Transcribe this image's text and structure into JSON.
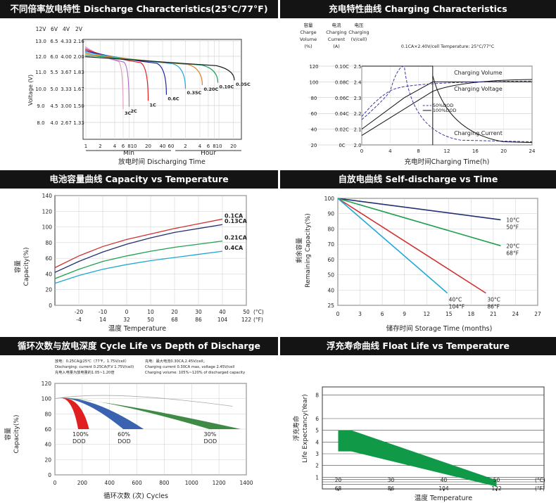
{
  "chart_data": [
    {
      "id": "discharge",
      "type": "line",
      "title": "不同倍率放电特性 Discharge Characteristics(25°C/77°F)",
      "voltage_headers": [
        "12V",
        "6V",
        "4V",
        "2V"
      ],
      "voltage_rows": [
        [
          "13.0",
          "6.5",
          "4.33",
          "2.16"
        ],
        [
          "12.0",
          "6.0",
          "4.00",
          "2.00"
        ],
        [
          "11.0",
          "5.5",
          "3.67",
          "1.83"
        ],
        [
          "10.0",
          "5.0",
          "3.33",
          "1.67"
        ],
        [
          "9.0",
          "4.5",
          "3.00",
          "1.50"
        ],
        [
          "8.0",
          "4.0",
          "2.67",
          "1.33"
        ]
      ],
      "ylabel": "Voltage (V)",
      "x_ticks_min": [
        "1",
        "2",
        "4",
        "6",
        "8",
        "10",
        "20",
        "40",
        "60"
      ],
      "x_ticks_hour": [
        "2",
        "4",
        "6",
        "8",
        "10",
        "20"
      ],
      "x_group_min": "Min",
      "x_group_hour": "Hour",
      "xlabel": "放电时间 Discharging Time",
      "ylim": [
        1.33,
        2.16
      ],
      "series": [
        {
          "name": "3C",
          "color": "#e0a0c0",
          "end_min": 6,
          "end_v": 1.58
        },
        {
          "name": "2C",
          "color": "#b070c8",
          "end_min": 8,
          "end_v": 1.6
        },
        {
          "name": "1C",
          "color": "#e02020",
          "end_min": 20,
          "end_v": 1.65
        },
        {
          "name": "0.6C",
          "color": "#2020a0",
          "end_min": 48,
          "end_v": 1.7
        },
        {
          "name": "0.35C",
          "color": "#20a8d8",
          "end_min": 120,
          "end_v": 1.75
        },
        {
          "name": "0.20C",
          "color": "#e08020",
          "end_min": 270,
          "end_v": 1.78
        },
        {
          "name": "0.10C",
          "color": "#20a060",
          "end_min": 570,
          "end_v": 1.8
        },
        {
          "name": "0.05C",
          "color": "#202020",
          "end_min": 1260,
          "end_v": 1.82
        }
      ]
    },
    {
      "id": "charging",
      "type": "line",
      "title": "充电特性曲线 Charging Characteristics",
      "col_headers": [
        [
          "容量",
          "Charge",
          "Volume",
          "(%)"
        ],
        [
          "电流",
          "Charging",
          "Current",
          "(A)"
        ],
        [
          "电压",
          "Charging",
          "(V/cell)"
        ]
      ],
      "note": "0.1CA×2.40V/cell  Temperature: 25°C/77°C",
      "rows": [
        [
          "120",
          "0.10C",
          "2.5"
        ],
        [
          "100",
          "0.08C",
          "2.4"
        ],
        [
          "80",
          "0.06C",
          "2.3"
        ],
        [
          "60",
          "0.04C",
          "2.2"
        ],
        [
          "40",
          "0.02C",
          "2.1"
        ],
        [
          "20",
          "0C",
          "2.0"
        ]
      ],
      "x_ticks": [
        "0",
        "4",
        "8",
        "12",
        "16",
        "20",
        "24"
      ],
      "xlim": [
        0,
        24
      ],
      "xlabel": "充电时间Charging Time(h)",
      "legend": [
        "50%DOD",
        "100%DOD"
      ],
      "labels": [
        "Charging Volume",
        "Charging Voltage",
        "Charging Current"
      ]
    },
    {
      "id": "capacity_temp",
      "type": "line",
      "title": "电池容量曲线 Capacity vs Temperature",
      "y_ticks": [
        "140",
        "120",
        "100",
        "80",
        "60",
        "40",
        "20",
        "0"
      ],
      "ylim": [
        0,
        140
      ],
      "ylabel_cn": "容量",
      "ylabel": "Capacity(%)",
      "x_ticks_c": [
        "-20",
        "-10",
        "0",
        "10",
        "20",
        "30",
        "40",
        "50"
      ],
      "x_ticks_f": [
        "-4",
        "14",
        "32",
        "50",
        "68",
        "86",
        "104",
        "122"
      ],
      "x_unit_c": "(°C)",
      "x_unit_f": "(°F)",
      "xlim": [
        -30,
        50
      ],
      "xlabel": "温度 Temperature",
      "series": [
        {
          "name": "0.1CA",
          "color": "#d03030",
          "x": [
            -30,
            -20,
            -10,
            0,
            10,
            20,
            30,
            40
          ],
          "values": [
            48,
            63,
            75,
            84,
            91,
            98,
            104,
            110
          ]
        },
        {
          "name": "0.13CA",
          "color": "#203070",
          "x": [
            -30,
            -20,
            -10,
            0,
            10,
            20,
            30,
            40
          ],
          "values": [
            42,
            56,
            68,
            78,
            86,
            93,
            98,
            103
          ]
        },
        {
          "name": "0.21CA",
          "color": "#20a050",
          "x": [
            -30,
            -20,
            -10,
            0,
            10,
            20,
            30,
            40
          ],
          "values": [
            34,
            46,
            56,
            63,
            69,
            74,
            78,
            82
          ]
        },
        {
          "name": "0.4CA",
          "color": "#20a8d0",
          "x": [
            -30,
            -20,
            -10,
            0,
            10,
            20,
            30,
            40
          ],
          "values": [
            28,
            38,
            46,
            52,
            57,
            61,
            65,
            69
          ]
        }
      ]
    },
    {
      "id": "self_discharge",
      "type": "line",
      "title": "自放电曲线 Self-discharge vs Time",
      "y_ticks": [
        "100",
        "90",
        "80",
        "70",
        "60",
        "50",
        "40",
        "25"
      ],
      "ylabel_cn": "剩余容量",
      "ylabel": "Remaining Capacity(%)",
      "x_ticks": [
        "0",
        "3",
        "6",
        "9",
        "12",
        "15",
        "18",
        "21",
        "24",
        "27"
      ],
      "xlim": [
        0,
        27
      ],
      "xlabel": "储存时间 Storage Time (months)",
      "series": [
        {
          "name_c": "10°C",
          "name_f": "50°F",
          "color": "#203070",
          "x": [
            0,
            22
          ],
          "values": [
            100,
            86
          ]
        },
        {
          "name_c": "20°C",
          "name_f": "68°F",
          "color": "#20a050",
          "x": [
            0,
            22
          ],
          "values": [
            100,
            69
          ]
        },
        {
          "name_c": "30°C",
          "name_f": "86°F",
          "color": "#d03030",
          "x": [
            0,
            20
          ],
          "values": [
            100,
            37
          ]
        },
        {
          "name_c": "40°C",
          "name_f": "104°F",
          "color": "#20a8d8",
          "x": [
            0,
            14.8
          ],
          "values": [
            100,
            37
          ]
        }
      ]
    },
    {
      "id": "cycle_life",
      "type": "area",
      "title": "循环次数与放电深度 Cycle Life vs Depth of Discharge",
      "notes_left": [
        "放电：0.25CA@25℃（77℉，1.75V/cell）",
        "Discharging: current 0.25CA(F.V 1.75V/cell)",
        "充电入电量为放电量的1.05~1.20倍"
      ],
      "notes_right": [
        "充电：最大电流0.30CA,2.45V/cell；",
        "Charging current 0.30CA max, voltage 2.45V/cell",
        "Charging volume: 105%~120% of discharged capacity"
      ],
      "y_ticks": [
        "120",
        "100",
        "80",
        "60",
        "40",
        "20",
        "0"
      ],
      "ylim": [
        0,
        120
      ],
      "ylabel_cn": "容量",
      "ylabel": "Capacity(%)",
      "x_ticks": [
        "0",
        "200",
        "400",
        "600",
        "800",
        "1000",
        "1200",
        "1400"
      ],
      "xlim": [
        0,
        1400
      ],
      "xlabel": "循环次数 (次) Cycles",
      "series": [
        {
          "name": "100%",
          "sub": "DOD",
          "color": "#e02020",
          "start": 130,
          "end_lo": 170,
          "end_hi": 250
        },
        {
          "name": "60%",
          "sub": "DOD",
          "color": "#3a62b0",
          "start": 220,
          "end_lo": 500,
          "end_hi": 650
        },
        {
          "name": "30%",
          "sub": "DOD",
          "color": "#3f8a45",
          "start": 350,
          "end_lo": 1130,
          "end_hi": 1360
        }
      ]
    },
    {
      "id": "float_life",
      "type": "area",
      "title": "浮充寿命曲线 Float Life vs Temperature",
      "y_ticks": [
        "8",
        "6",
        "5",
        "4",
        "3",
        "2",
        "1"
      ],
      "ylim": [
        0,
        8
      ],
      "ylabel_cn": "浮充寿命",
      "ylabel": "Life Expectancy(Year)",
      "x_ticks_c": [
        "20",
        "30",
        "40",
        "50"
      ],
      "x_ticks_f": [
        "68",
        "86",
        "104",
        "122"
      ],
      "x_unit_c": "(°C)",
      "x_unit_f": "(°F)",
      "xlim": [
        17,
        59
      ],
      "xlabel": "温度 Temperature",
      "band": {
        "color": "#109a48",
        "x": [
          20,
          22.5,
          50
        ],
        "upper": [
          5.0,
          5.0,
          0.75
        ],
        "lower": [
          3.2,
          3.2,
          0.2
        ]
      }
    }
  ]
}
